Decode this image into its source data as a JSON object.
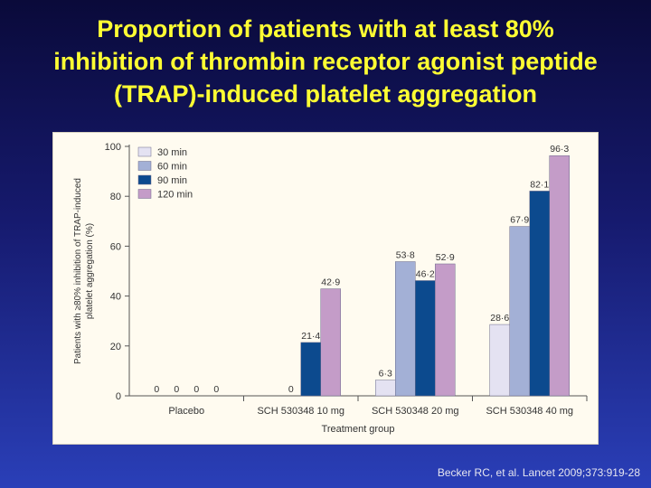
{
  "slide": {
    "title_lines": [
      "Proportion of patients with at least 80%",
      "inhibition of thrombin receptor agonist peptide",
      "(TRAP)-induced platelet aggregation"
    ],
    "citation": "Becker RC, et al. Lancet 2009;373:919-28"
  },
  "chart_data": {
    "type": "bar",
    "title": "",
    "xlabel": "Treatment group",
    "ylabel_lines": [
      "Patients with ≥80% inhibition of TRAP-induced",
      "platelet aggregation (%)"
    ],
    "ylim": [
      0,
      100
    ],
    "yticks": [
      "0",
      "20",
      "40",
      "60",
      "80",
      "100"
    ],
    "ytick_values": [
      0,
      20,
      40,
      60,
      80,
      100
    ],
    "grid": false,
    "legend_position": "top-left",
    "categories": [
      "Placebo",
      "SCH 530348 10 mg",
      "SCH 530348 20 mg",
      "SCH 530348 40 mg"
    ],
    "series": [
      {
        "name": "30 min",
        "color": "#e4e2f2",
        "values": [
          0,
          null,
          6.3,
          28.6
        ],
        "labels": [
          "0",
          "",
          "6·3",
          "28·6"
        ]
      },
      {
        "name": "60 min",
        "color": "#a3b0d6",
        "values": [
          0,
          0,
          53.8,
          67.9
        ],
        "labels": [
          "0",
          "0",
          "53·8",
          "67·9"
        ]
      },
      {
        "name": "90 min",
        "color": "#0c4a8e",
        "values": [
          0,
          21.4,
          46.2,
          82.1
        ],
        "labels": [
          "0",
          "21·4",
          "46·2",
          "82·1"
        ]
      },
      {
        "name": "120 min",
        "color": "#c49cc8",
        "values": [
          0,
          42.9,
          52.9,
          96.3
        ],
        "labels": [
          "0",
          "42·9",
          "52·9",
          "96·3"
        ]
      }
    ]
  }
}
